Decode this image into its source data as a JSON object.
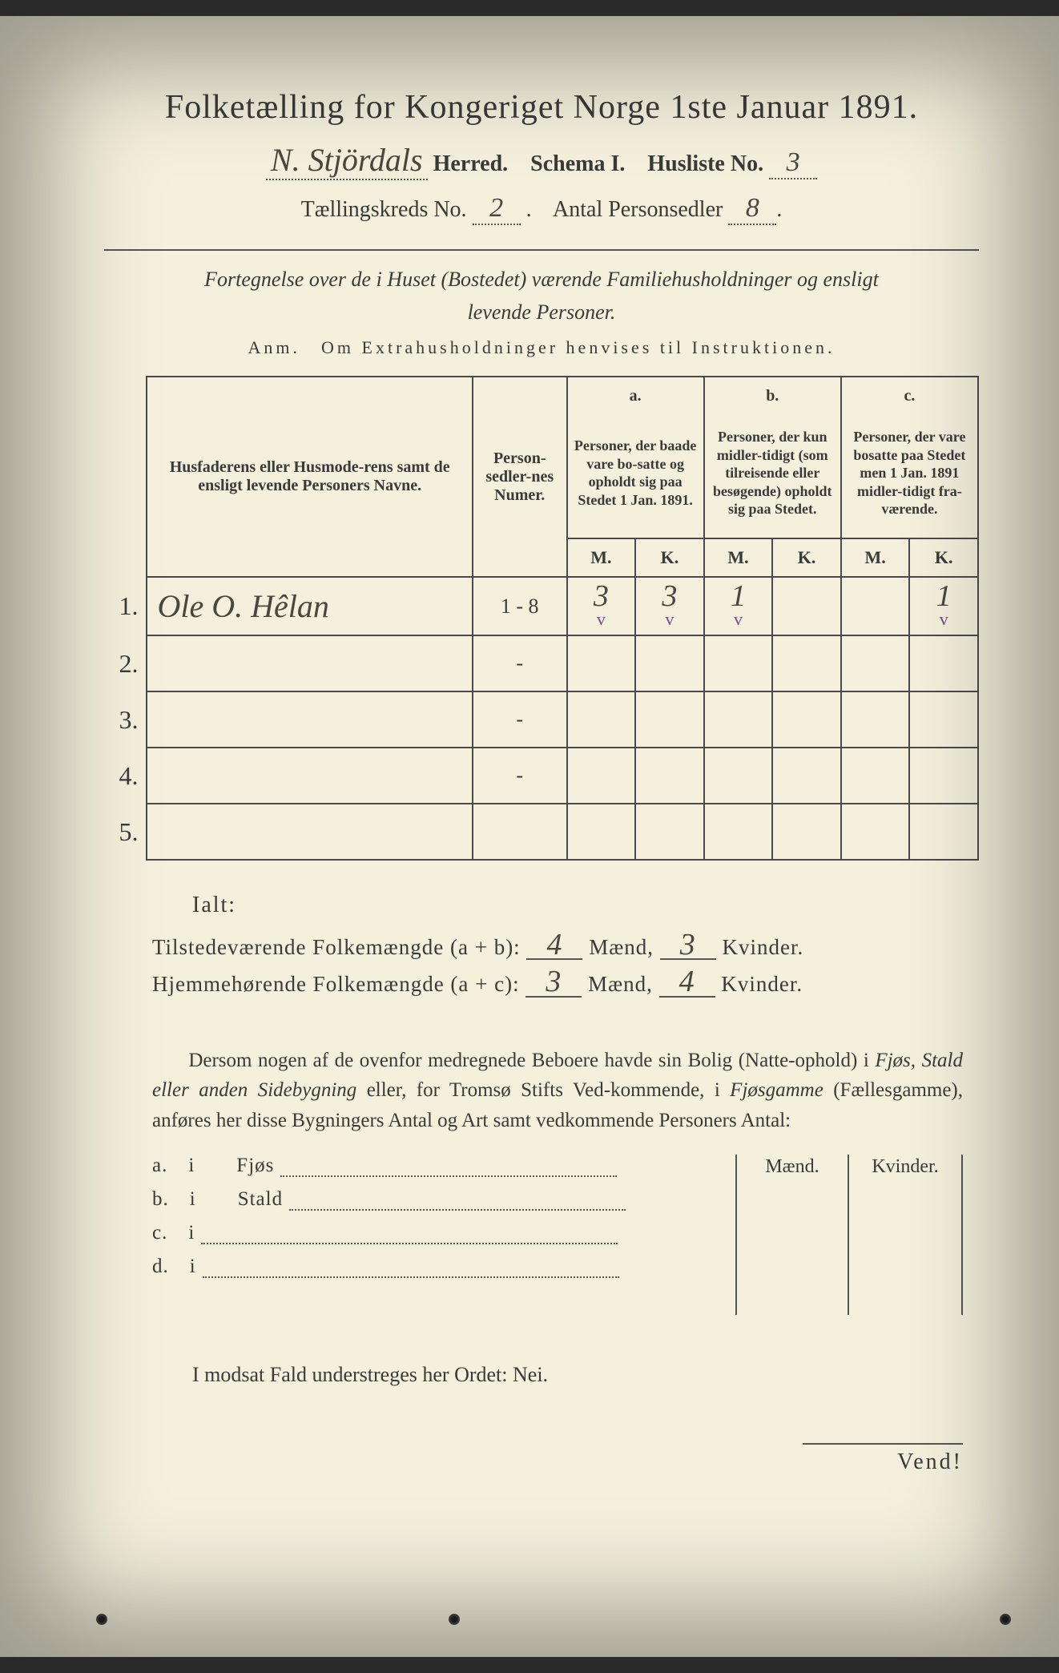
{
  "header": {
    "title": "Folketælling for Kongeriget Norge 1ste Januar 1891.",
    "herred_hw": "N. Stjördals",
    "herred_label": "Herred.",
    "schema": "Schema I.",
    "husliste_label": "Husliste No.",
    "husliste_no": "3",
    "kreds_label": "Tællingskreds No.",
    "kreds_no": "2",
    "antal_label": "Antal Personsedler",
    "antal_no": "8"
  },
  "subtitle": {
    "line1": "Fortegnelse over de i Huset (Bostedet) værende Familiehusholdninger og ensligt",
    "line2": "levende Personer.",
    "anm": "Anm. Om Extrahusholdninger henvises til Instruktionen."
  },
  "table": {
    "col_name": "Husfaderens eller Husmode-rens samt de ensligt levende Personers Navne.",
    "col_num": "Person-sedler-nes Numer.",
    "col_a_head": "a.",
    "col_a": "Personer, der baade vare bo-satte og opholdt sig paa Stedet 1 Jan. 1891.",
    "col_b_head": "b.",
    "col_b": "Personer, der kun midler-tidigt (som tilreisende eller besøgende) opholdt sig paa Stedet.",
    "col_c_head": "c.",
    "col_c": "Personer, der vare bosatte paa Stedet men 1 Jan. 1891 midler-tidigt fra-værende.",
    "M": "M.",
    "K": "K.",
    "rows": [
      {
        "n": "1.",
        "name": "Ole O. Hêlan",
        "num": "1 - 8",
        "aM": "3",
        "aK": "3",
        "bM": "1",
        "bK": "",
        "cM": "",
        "cK": "1",
        "checks": true
      },
      {
        "n": "2.",
        "name": "",
        "num": "-",
        "aM": "",
        "aK": "",
        "bM": "",
        "bK": "",
        "cM": "",
        "cK": "",
        "checks": false
      },
      {
        "n": "3.",
        "name": "",
        "num": "-",
        "aM": "",
        "aK": "",
        "bM": "",
        "bK": "",
        "cM": "",
        "cK": "",
        "checks": false
      },
      {
        "n": "4.",
        "name": "",
        "num": "-",
        "aM": "",
        "aK": "",
        "bM": "",
        "bK": "",
        "cM": "",
        "cK": "",
        "checks": false
      },
      {
        "n": "5.",
        "name": "",
        "num": "",
        "aM": "",
        "aK": "",
        "bM": "",
        "bK": "",
        "cM": "",
        "cK": "",
        "checks": false
      }
    ]
  },
  "totals": {
    "ialt": "Ialt:",
    "line1_a": "Tilstedeværende Folkemængde (a + b):",
    "line1_m": "4",
    "line1_mlabel": "Mænd,",
    "line1_k": "3",
    "line1_klabel": "Kvinder.",
    "line2_a": "Hjemmehørende Folkemængde (a + c):",
    "line2_m": "3",
    "line2_k": "4"
  },
  "para": "Dersom nogen af de ovenfor medregnede Beboere havde sin Bolig (Natte-ophold) i Fjøs, Stald eller anden Sidebygning eller, for Tromsø Stifts Ved-kommende, i Fjøsgamme (Fællesgamme), anføres her disse Bygningers Antal og Art samt vedkommende Personers Antal:",
  "bottom": {
    "a": "a. i  Fjøs",
    "b": "b. i  Stald",
    "c": "c. i",
    "d": "d. i",
    "maend": "Mænd.",
    "kvinder": "Kvinder."
  },
  "nei": "I modsat Fald understreges her Ordet: Nei.",
  "vend": "Vend!",
  "colors": {
    "paper": "#f4f0dc",
    "ink": "#3a3a3a",
    "handwriting": "#4a4640",
    "check": "#7a4a8a",
    "border": "#4a4a4a"
  },
  "fonts": {
    "title_size": 42,
    "body_size": 26,
    "table_hdr_size": 20,
    "handwriting_size": 40
  }
}
